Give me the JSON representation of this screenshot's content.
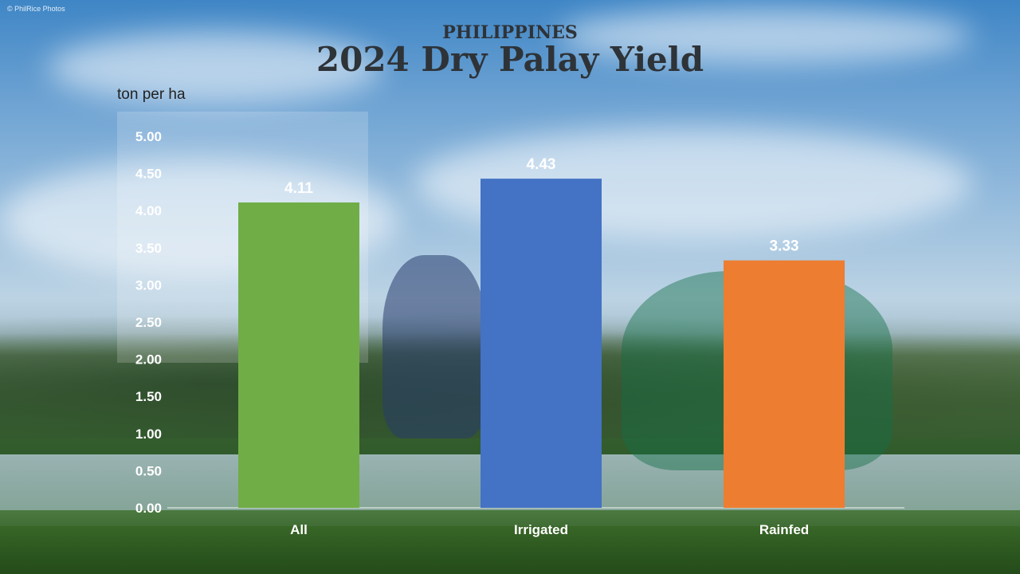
{
  "credit": "© PhilRice Photos",
  "chart_data": {
    "type": "bar",
    "subtitle": "PHILIPPINES",
    "title": "2024 Dry Palay Yield",
    "ylabel": "ton per ha",
    "xlabel": "",
    "ylim": [
      0,
      5
    ],
    "yticks": [
      "0.00",
      "0.50",
      "1.00",
      "1.50",
      "2.00",
      "2.50",
      "3.00",
      "3.50",
      "4.00",
      "4.50",
      "5.00"
    ],
    "categories": [
      "All",
      "Irrigated",
      "Rainfed"
    ],
    "values": [
      4.11,
      4.43,
      3.33
    ],
    "value_labels": [
      "4.11",
      "4.43",
      "3.33"
    ],
    "colors": [
      "#70ad47",
      "#4472c4",
      "#ed7d31"
    ],
    "grid": false,
    "legend": "none"
  }
}
